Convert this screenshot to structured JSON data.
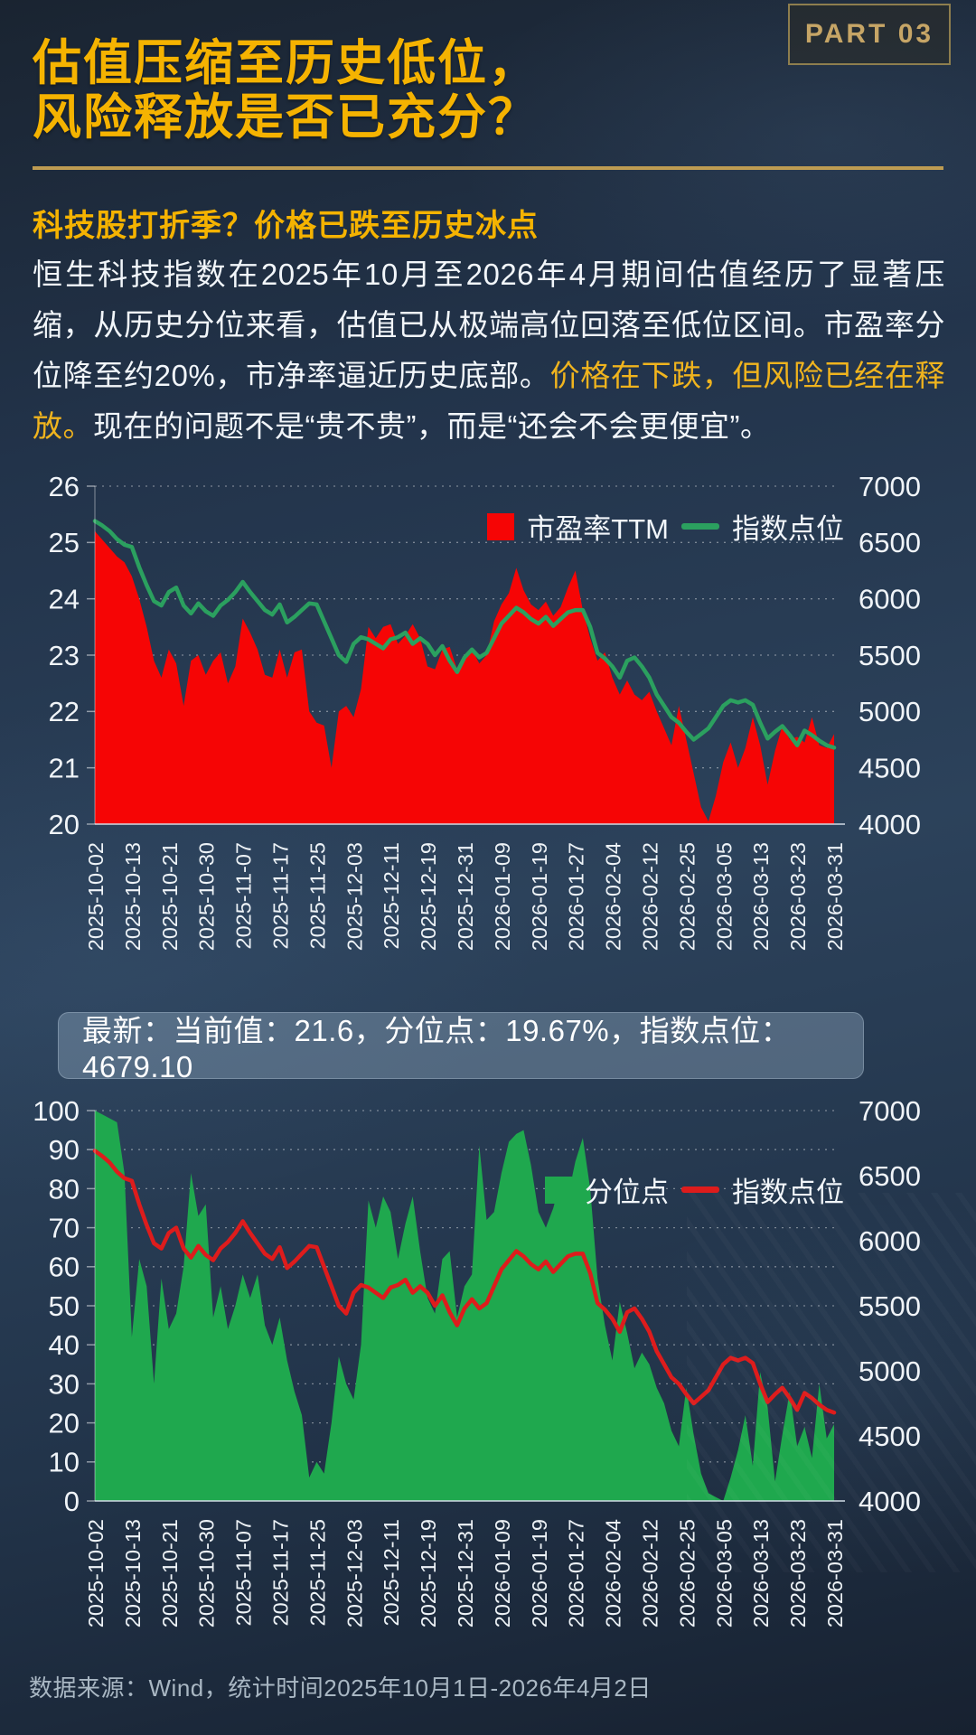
{
  "badge": {
    "label": "PART 03"
  },
  "title": {
    "line1": "估值压缩至历史低位，",
    "line2": "风险释放是否已充分？"
  },
  "section": {
    "subtitle": "科技股打折季？价格已跌至历史冰点",
    "paragraph": {
      "before": "恒生科技指数在2025年10月至2026年4月期间估值经历了显著压缩，从历史分位来看，估值已从极端高位回落至低位区间。市盈率分位降至约20%，市净率逼近历史底部。",
      "highlight": "价格在下跌，但风险已经在释放。",
      "after": "现在的问题不是“贵不贵”，而是“还会不会更便宜”。"
    }
  },
  "latest_banner": {
    "text": "最新：当前值：21.6，分位点：19.67%，指数点位：4679.10"
  },
  "footer": {
    "source": "数据来源：Wind，统计时间2025年10月1日-2026年4月2日"
  },
  "colors": {
    "accent_yellow": "#f5b301",
    "divider_gold": "#be9c52",
    "pe_area_red": "#f60505",
    "index_line_green": "#2ba05f",
    "pct_area_green": "#1fa84e",
    "index_line_red": "#de1c1c",
    "axis_text": "#f0f4f8",
    "grid": "rgba(255,255,255,0.40)"
  },
  "chart_data": [
    {
      "type": "area",
      "title": "恒生科技指数 市盈率TTM 与 指数点位",
      "categories": [
        "2025-10-02",
        "2025-10-13",
        "2025-10-21",
        "2025-10-30",
        "2025-11-07",
        "2025-11-17",
        "2025-11-25",
        "2025-12-03",
        "2025-12-11",
        "2025-12-19",
        "2025-12-31",
        "2026-01-09",
        "2026-01-19",
        "2026-01-27",
        "2026-02-04",
        "2026-02-12",
        "2026-02-25",
        "2026-03-05",
        "2026-03-13",
        "2026-03-23",
        "2026-03-31"
      ],
      "left_axis": {
        "label": "市盈率TTM",
        "min": 20,
        "max": 26,
        "ticks": [
          26,
          25,
          24,
          23,
          22,
          21,
          20
        ]
      },
      "right_axis": {
        "label": "指数点位",
        "min": 4000,
        "max": 7000,
        "ticks": [
          7000,
          6500,
          6000,
          5500,
          5000,
          4500,
          4000
        ]
      },
      "legend_position": "top-right-inside",
      "grid": true,
      "series": [
        {
          "name": "市盈率TTM",
          "kind": "area",
          "axis": "left",
          "color": "#f60505",
          "values": [
            25.2,
            25.05,
            24.9,
            24.75,
            24.65,
            24.4,
            24.0,
            23.5,
            22.9,
            22.6,
            23.1,
            22.85,
            22.1,
            22.9,
            23.0,
            22.65,
            22.9,
            23.05,
            22.5,
            22.8,
            23.65,
            23.4,
            23.1,
            22.65,
            22.6,
            23.1,
            22.6,
            23.05,
            23.1,
            22.0,
            21.8,
            21.75,
            21.0,
            22.0,
            22.1,
            21.9,
            22.4,
            23.5,
            23.3,
            23.5,
            23.55,
            23.2,
            23.35,
            23.55,
            23.3,
            22.8,
            22.75,
            23.1,
            23.15,
            22.75,
            22.9,
            23.1,
            22.85,
            23.0,
            23.6,
            23.9,
            24.1,
            24.55,
            24.15,
            23.9,
            23.8,
            23.95,
            23.7,
            23.85,
            24.2,
            24.5,
            23.8,
            23.3,
            22.9,
            23.05,
            22.6,
            22.3,
            22.55,
            22.3,
            22.2,
            22.35,
            22.0,
            21.7,
            21.4,
            22.1,
            21.5,
            20.9,
            20.3,
            20.05,
            20.5,
            21.1,
            21.45,
            21.0,
            21.35,
            21.9,
            21.4,
            20.7,
            21.3,
            21.75,
            21.5,
            21.55,
            21.45,
            21.9,
            21.4,
            21.35,
            21.6
          ]
        },
        {
          "name": "指数点位",
          "kind": "line",
          "axis": "right",
          "color": "#2ba05f",
          "values": [
            6690,
            6650,
            6600,
            6530,
            6480,
            6460,
            6280,
            6120,
            5980,
            5940,
            6060,
            6100,
            5940,
            5870,
            5960,
            5890,
            5850,
            5940,
            5990,
            6060,
            6150,
            6060,
            5980,
            5900,
            5860,
            5950,
            5790,
            5840,
            5900,
            5960,
            5950,
            5800,
            5650,
            5500,
            5440,
            5600,
            5660,
            5640,
            5600,
            5560,
            5640,
            5660,
            5700,
            5600,
            5650,
            5600,
            5500,
            5580,
            5450,
            5350,
            5480,
            5550,
            5480,
            5520,
            5650,
            5780,
            5850,
            5920,
            5880,
            5820,
            5780,
            5840,
            5760,
            5820,
            5880,
            5900,
            5900,
            5750,
            5520,
            5470,
            5400,
            5300,
            5450,
            5480,
            5400,
            5300,
            5150,
            5050,
            4950,
            4900,
            4820,
            4750,
            4800,
            4850,
            4950,
            5050,
            5100,
            5080,
            5100,
            5060,
            4900,
            4760,
            4820,
            4870,
            4790,
            4700,
            4830,
            4790,
            4740,
            4700,
            4679
          ]
        }
      ]
    },
    {
      "type": "area",
      "title": "恒生科技指数 市盈率历史分位点 与 指数点位",
      "categories": [
        "2025-10-02",
        "2025-10-13",
        "2025-10-21",
        "2025-10-30",
        "2025-11-07",
        "2025-11-17",
        "2025-11-25",
        "2025-12-03",
        "2025-12-11",
        "2025-12-19",
        "2025-12-31",
        "2026-01-09",
        "2026-01-19",
        "2026-01-27",
        "2026-02-04",
        "2026-02-12",
        "2026-02-25",
        "2026-03-05",
        "2026-03-13",
        "2026-03-23",
        "2026-03-31"
      ],
      "left_axis": {
        "label": "分位点",
        "min": 0,
        "max": 100,
        "ticks": [
          100,
          90,
          80,
          70,
          60,
          50,
          40,
          30,
          20,
          10,
          0
        ]
      },
      "right_axis": {
        "label": "指数点位",
        "min": 4000,
        "max": 7000,
        "ticks": [
          7000,
          6500,
          6000,
          5500,
          5000,
          4500,
          4000
        ]
      },
      "legend_position": "top-right-inside",
      "grid": true,
      "series": [
        {
          "name": "分位点",
          "kind": "area",
          "axis": "left",
          "color": "#1fa84e",
          "values": [
            100,
            99,
            98,
            97,
            84,
            42,
            62,
            55,
            30,
            57,
            44,
            48,
            60,
            84,
            73,
            76,
            47,
            55,
            44,
            50,
            58,
            52,
            58,
            45,
            40,
            47,
            36,
            28,
            22,
            6,
            10,
            7,
            20,
            37,
            30,
            26,
            40,
            77,
            70,
            78,
            74,
            62,
            71,
            78,
            64,
            52,
            48,
            62,
            64,
            47,
            55,
            58,
            91,
            72,
            74,
            84,
            92,
            94,
            95,
            86,
            74,
            70,
            75,
            82,
            78,
            87,
            93,
            80,
            57,
            45,
            36,
            51,
            43,
            34,
            38,
            35,
            29,
            25,
            18,
            14,
            29,
            17,
            7,
            2,
            1,
            0,
            6,
            13,
            22,
            9,
            33,
            24,
            5,
            17,
            28,
            14,
            19,
            11,
            30,
            16,
            19.67
          ]
        },
        {
          "name": "指数点位",
          "kind": "line",
          "axis": "right",
          "color": "#de1c1c",
          "values": [
            6690,
            6650,
            6600,
            6530,
            6480,
            6460,
            6280,
            6120,
            5980,
            5940,
            6060,
            6100,
            5940,
            5870,
            5960,
            5890,
            5850,
            5940,
            5990,
            6060,
            6150,
            6060,
            5980,
            5900,
            5860,
            5950,
            5790,
            5840,
            5900,
            5960,
            5950,
            5800,
            5650,
            5500,
            5440,
            5600,
            5660,
            5640,
            5600,
            5560,
            5640,
            5660,
            5700,
            5600,
            5650,
            5600,
            5500,
            5580,
            5450,
            5350,
            5480,
            5550,
            5480,
            5520,
            5650,
            5780,
            5850,
            5920,
            5880,
            5820,
            5780,
            5840,
            5760,
            5820,
            5880,
            5900,
            5900,
            5750,
            5520,
            5470,
            5400,
            5300,
            5450,
            5480,
            5400,
            5300,
            5150,
            5050,
            4950,
            4900,
            4820,
            4750,
            4800,
            4850,
            4950,
            5050,
            5100,
            5080,
            5100,
            5060,
            4900,
            4760,
            4820,
            4870,
            4790,
            4700,
            4830,
            4790,
            4740,
            4700,
            4679
          ]
        }
      ]
    }
  ],
  "legend1": {
    "area_label": "市盈率TTM",
    "line_label": "指数点位"
  },
  "legend2": {
    "area_label": "分位点",
    "line_label": "指数点位"
  }
}
